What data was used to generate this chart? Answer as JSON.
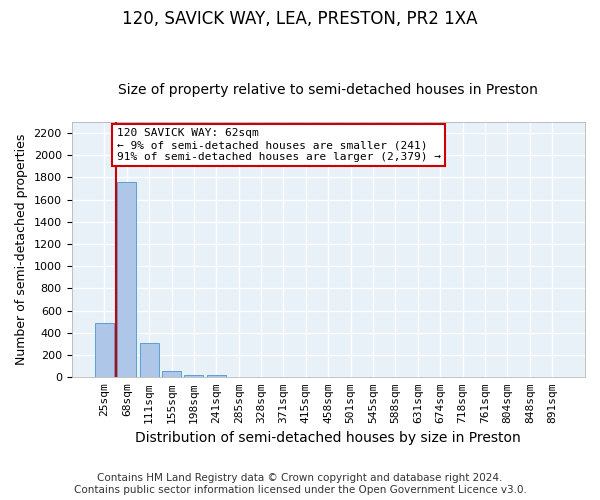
{
  "title": "120, SAVICK WAY, LEA, PRESTON, PR2 1XA",
  "subtitle": "Size of property relative to semi-detached houses in Preston",
  "xlabel": "Distribution of semi-detached houses by size in Preston",
  "ylabel": "Number of semi-detached properties",
  "categories": [
    "25sqm",
    "68sqm",
    "111sqm",
    "155sqm",
    "198sqm",
    "241sqm",
    "285sqm",
    "328sqm",
    "371sqm",
    "415sqm",
    "458sqm",
    "501sqm",
    "545sqm",
    "588sqm",
    "631sqm",
    "674sqm",
    "718sqm",
    "761sqm",
    "804sqm",
    "848sqm",
    "891sqm"
  ],
  "values": [
    490,
    1760,
    305,
    55,
    25,
    20,
    0,
    0,
    0,
    0,
    0,
    0,
    0,
    0,
    0,
    0,
    0,
    0,
    0,
    0,
    0
  ],
  "bar_color": "#aec6e8",
  "bar_edge_color": "#5a9fd4",
  "vline_color": "#cc0000",
  "annotation_text": "120 SAVICK WAY: 62sqm\n← 9% of semi-detached houses are smaller (241)\n91% of semi-detached houses are larger (2,379) →",
  "annotation_box_color": "#ffffff",
  "annotation_box_edge_color": "#cc0000",
  "ylim": [
    0,
    2300
  ],
  "yticks": [
    0,
    200,
    400,
    600,
    800,
    1000,
    1200,
    1400,
    1600,
    1800,
    2000,
    2200
  ],
  "background_color": "#e8f0f8",
  "grid_color": "#ffffff",
  "footer": "Contains HM Land Registry data © Crown copyright and database right 2024.\nContains public sector information licensed under the Open Government Licence v3.0.",
  "title_fontsize": 12,
  "subtitle_fontsize": 10,
  "xlabel_fontsize": 10,
  "ylabel_fontsize": 9,
  "tick_fontsize": 8,
  "annotation_fontsize": 8,
  "footer_fontsize": 7.5
}
